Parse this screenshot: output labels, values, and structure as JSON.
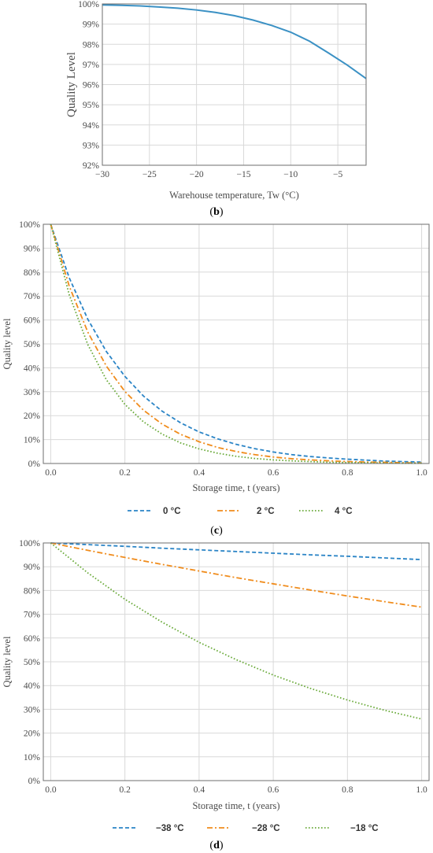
{
  "chart_data": [
    {
      "panel": "b",
      "type": "line",
      "caption_letter": "b",
      "caption_open": "(",
      "caption_close": ")",
      "xlabel": "Warehouse temperature, Tw (°C)",
      "ylabel": "Quality Level",
      "xlim": [
        -30,
        -2
      ],
      "ylim": [
        0.92,
        1.0
      ],
      "x_ticks": [
        -30,
        -25,
        -20,
        -15,
        -10,
        -5
      ],
      "x_tick_labels": [
        "−30",
        "−25",
        "−20",
        "−15",
        "−10",
        "−5"
      ],
      "y_ticks": [
        0.92,
        0.93,
        0.94,
        0.95,
        0.96,
        0.97,
        0.98,
        0.99,
        1.0
      ],
      "y_tick_labels": [
        "92%",
        "93%",
        "94%",
        "95%",
        "96%",
        "97%",
        "98%",
        "99%",
        "100%"
      ],
      "grid": true,
      "series": [
        {
          "color": "#3b91c4",
          "dash": "solid",
          "x": [
            -30,
            -28,
            -26,
            -24,
            -22,
            -20,
            -18,
            -16,
            -14,
            -12,
            -10,
            -8,
            -6,
            -4,
            -2
          ],
          "y": [
            0.9995,
            0.9993,
            0.999,
            0.9985,
            0.9979,
            0.997,
            0.9958,
            0.9942,
            0.992,
            0.9893,
            0.986,
            0.9815,
            0.9757,
            0.9697,
            0.963
          ]
        }
      ]
    },
    {
      "panel": "c",
      "type": "line",
      "caption_letter": "c",
      "caption_open": "(",
      "caption_close": ")",
      "xlabel": "Storage time, t (years)",
      "ylabel": "Quality level",
      "xlim": [
        -0.02,
        1.02
      ],
      "ylim": [
        0,
        1.0
      ],
      "x_ticks": [
        0,
        0.2,
        0.4,
        0.6,
        0.8,
        1.0
      ],
      "x_tick_labels": [
        "0.0",
        "0.2",
        "0.4",
        "0.6",
        "0.8",
        "1.0"
      ],
      "y_ticks": [
        0,
        0.1,
        0.2,
        0.3,
        0.4,
        0.5,
        0.6,
        0.7,
        0.8,
        0.9,
        1.0
      ],
      "y_tick_labels": [
        "0%",
        "10%",
        "20%",
        "30%",
        "40%",
        "50%",
        "60%",
        "70%",
        "80%",
        "90%",
        "100%"
      ],
      "grid": true,
      "legend_position": "bottom",
      "series": [
        {
          "name": "0 °C",
          "color": "#2a84c6",
          "dash": "dashed",
          "x": [
            0,
            0.05,
            0.1,
            0.15,
            0.2,
            0.25,
            0.3,
            0.35,
            0.4,
            0.45,
            0.5,
            0.55,
            0.6,
            0.65,
            0.7,
            0.75,
            0.8,
            0.85,
            0.9,
            0.95,
            1.0
          ],
          "y": [
            1.0,
            0.776,
            0.603,
            0.468,
            0.364,
            0.282,
            0.219,
            0.17,
            0.132,
            0.103,
            0.08,
            0.062,
            0.048,
            0.037,
            0.029,
            0.023,
            0.018,
            0.014,
            0.01,
            0.008,
            0.006
          ]
        },
        {
          "name": "2 °C",
          "color": "#f08c1c",
          "dash": "dashdot",
          "x": [
            0,
            0.05,
            0.1,
            0.15,
            0.2,
            0.25,
            0.3,
            0.35,
            0.4,
            0.45,
            0.5,
            0.55,
            0.6,
            0.65,
            0.7,
            0.75,
            0.8,
            0.85,
            0.9,
            0.95,
            1.0
          ],
          "y": [
            1.0,
            0.741,
            0.549,
            0.407,
            0.301,
            0.223,
            0.165,
            0.122,
            0.091,
            0.067,
            0.05,
            0.037,
            0.027,
            0.02,
            0.015,
            0.011,
            0.008,
            0.006,
            0.005,
            0.003,
            0.002
          ]
        },
        {
          "name": "4 °C",
          "color": "#6aaa3a",
          "dash": "dotted",
          "x": [
            0,
            0.05,
            0.1,
            0.15,
            0.2,
            0.25,
            0.3,
            0.35,
            0.4,
            0.45,
            0.5,
            0.55,
            0.6,
            0.65,
            0.7,
            0.75,
            0.8,
            0.85,
            0.9,
            0.95,
            1.0
          ],
          "y": [
            1.0,
            0.705,
            0.497,
            0.35,
            0.247,
            0.174,
            0.123,
            0.086,
            0.061,
            0.043,
            0.03,
            0.021,
            0.015,
            0.011,
            0.008,
            0.005,
            0.004,
            0.003,
            0.002,
            0.001,
            0.001
          ]
        }
      ]
    },
    {
      "panel": "d",
      "type": "line",
      "caption_letter": "d",
      "caption_open": "(",
      "caption_close": ")",
      "xlabel": "Storage time, t (years)",
      "ylabel": "Quality level",
      "xlim": [
        -0.02,
        1.02
      ],
      "ylim": [
        0,
        1.0
      ],
      "x_ticks": [
        0,
        0.2,
        0.4,
        0.6,
        0.8,
        1.0
      ],
      "x_tick_labels": [
        "0.0",
        "0.2",
        "0.4",
        "0.6",
        "0.8",
        "1.0"
      ],
      "y_ticks": [
        0,
        0.1,
        0.2,
        0.3,
        0.4,
        0.5,
        0.6,
        0.7,
        0.8,
        0.9,
        1.0
      ],
      "y_tick_labels": [
        "0%",
        "10%",
        "20%",
        "30%",
        "40%",
        "50%",
        "60%",
        "70%",
        "80%",
        "90%",
        "100%"
      ],
      "grid": true,
      "legend_position": "bottom",
      "series": [
        {
          "name": "−38 °C",
          "color": "#2a84c6",
          "dash": "dashed",
          "x": [
            0,
            0.1,
            0.2,
            0.3,
            0.4,
            0.5,
            0.6,
            0.7,
            0.8,
            0.9,
            1.0
          ],
          "y": [
            1.0,
            0.993,
            0.986,
            0.978,
            0.971,
            0.964,
            0.957,
            0.95,
            0.944,
            0.937,
            0.93
          ]
        },
        {
          "name": "−28 °C",
          "color": "#f08c1c",
          "dash": "dashdot",
          "x": [
            0,
            0.1,
            0.2,
            0.3,
            0.4,
            0.5,
            0.6,
            0.7,
            0.8,
            0.9,
            1.0
          ],
          "y": [
            1.0,
            0.969,
            0.939,
            0.91,
            0.882,
            0.854,
            0.828,
            0.802,
            0.777,
            0.753,
            0.73
          ]
        },
        {
          "name": "−18 °C",
          "color": "#6aaa3a",
          "dash": "dotted",
          "x": [
            0,
            0.1,
            0.2,
            0.3,
            0.4,
            0.5,
            0.6,
            0.7,
            0.8,
            0.9,
            1.0
          ],
          "y": [
            1.0,
            0.874,
            0.763,
            0.667,
            0.582,
            0.509,
            0.444,
            0.388,
            0.339,
            0.296,
            0.259
          ]
        }
      ]
    }
  ]
}
